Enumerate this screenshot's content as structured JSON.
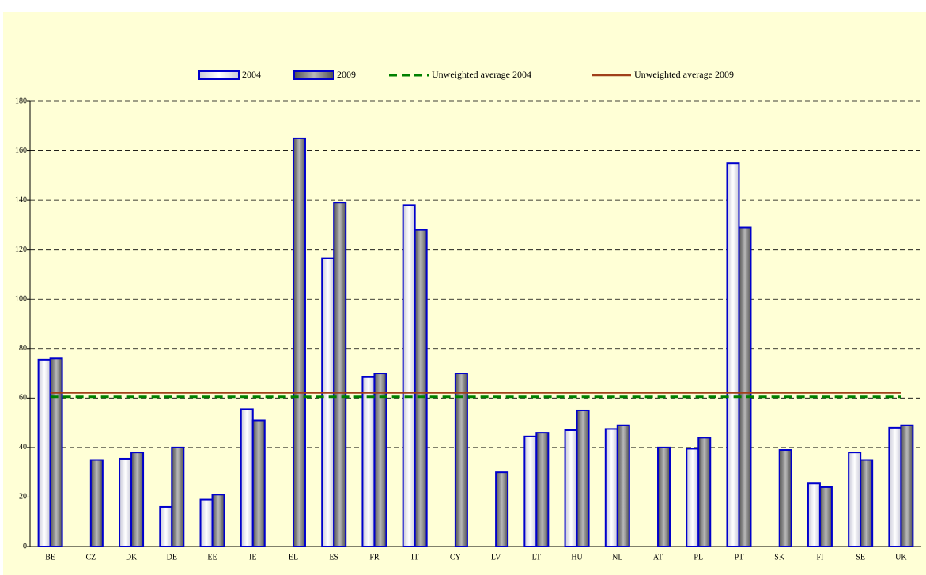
{
  "chart_data": {
    "type": "bar",
    "categories": [
      "BE",
      "CZ",
      "DK",
      "DE",
      "EE",
      "IE",
      "EL",
      "ES",
      "FR",
      "IT",
      "CY",
      "LV",
      "LT",
      "HU",
      "NL",
      "AT",
      "PL",
      "PT",
      "SK",
      "FI",
      "SE",
      "UK"
    ],
    "series": [
      {
        "name": "2004",
        "color": "#e8e8f0",
        "border": "#0000cc",
        "values": [
          75.5,
          null,
          35.5,
          16,
          19,
          55.5,
          null,
          116.5,
          68.5,
          138,
          null,
          null,
          44.5,
          47,
          47.5,
          null,
          39.5,
          155,
          null,
          25.5,
          38,
          48
        ]
      },
      {
        "name": "2009",
        "color": "#808080",
        "border": "#0000cc",
        "values": [
          76,
          35,
          38,
          40,
          21,
          51,
          165,
          139,
          70,
          128,
          70,
          30,
          46,
          55,
          49,
          40,
          44,
          129,
          39,
          24,
          35,
          49
        ]
      }
    ],
    "reference_lines": [
      {
        "name": "Unweighted average 2004",
        "color": "#008000",
        "dashed": true,
        "value": 60.5
      },
      {
        "name": "Unweighted average 2009",
        "color": "#a0401a",
        "dashed": false,
        "value": 62.2
      }
    ],
    "ylim": [
      0,
      180
    ],
    "yticks": [
      0,
      20,
      40,
      60,
      80,
      100,
      120,
      140,
      160,
      180
    ],
    "grid": true
  }
}
